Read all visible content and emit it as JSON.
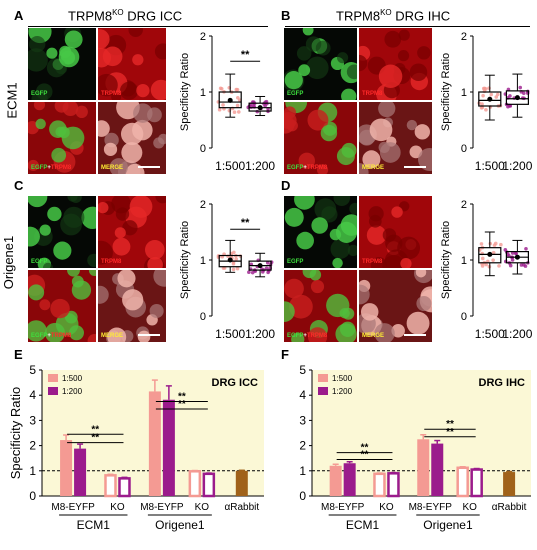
{
  "panels": {
    "A": {
      "letter": "A",
      "title_pre": "TRPM8",
      "title_sup": "KO",
      "title_post": " DRG ICC"
    },
    "B": {
      "letter": "B",
      "title_pre": "TRPM8",
      "title_sup": "KO",
      "title_post": " DRG IHC"
    },
    "C": {
      "letter": "C"
    },
    "D": {
      "letter": "D"
    },
    "E": {
      "letter": "E"
    },
    "F": {
      "letter": "F"
    }
  },
  "row_labels": {
    "ecm1": "ECM1",
    "origene1": "Origene1"
  },
  "micro_labels": {
    "egfp": "EGFP",
    "trpm8": "TRPM8",
    "merge": "MERGE",
    "plus": "+"
  },
  "colors": {
    "dil500": "#f49a93",
    "dil200": "#9b1b8c",
    "rabbit": "#a0621a",
    "bg": "#fbf8d6",
    "bgE": "#fbf8d6"
  },
  "chart_data": [
    {
      "panel": "A",
      "type": "box",
      "ylabel": "Specificity Ratio",
      "ylim": [
        0,
        2
      ],
      "yticks": [
        "0",
        "1",
        "2"
      ],
      "categories": [
        "1:500",
        "1:200"
      ],
      "boxes": [
        {
          "min": 0.55,
          "q1": 0.72,
          "median": 0.82,
          "q3": 1.0,
          "max": 1.32,
          "mean": 0.85
        },
        {
          "min": 0.58,
          "q1": 0.66,
          "median": 0.72,
          "q3": 0.8,
          "max": 0.92,
          "mean": 0.72
        }
      ],
      "significance": "**"
    },
    {
      "panel": "B",
      "type": "box",
      "ylabel": "Specificity Ratio",
      "ylim": [
        0,
        2
      ],
      "yticks": [
        "0",
        "1",
        "2"
      ],
      "categories": [
        "1:500",
        "1:200"
      ],
      "boxes": [
        {
          "min": 0.5,
          "q1": 0.75,
          "median": 0.85,
          "q3": 1.0,
          "max": 1.3,
          "mean": 0.87
        },
        {
          "min": 0.55,
          "q1": 0.78,
          "median": 0.88,
          "q3": 1.02,
          "max": 1.32,
          "mean": 0.9
        }
      ],
      "significance": ""
    },
    {
      "panel": "C",
      "type": "box",
      "ylabel": "Specificity Ratio",
      "ylim": [
        0,
        2
      ],
      "yticks": [
        "0",
        "1",
        "2"
      ],
      "categories": [
        "1:500",
        "1:200"
      ],
      "boxes": [
        {
          "min": 0.78,
          "q1": 0.88,
          "median": 0.98,
          "q3": 1.08,
          "max": 1.35,
          "mean": 1.0
        },
        {
          "min": 0.7,
          "q1": 0.82,
          "median": 0.9,
          "q3": 0.98,
          "max": 1.12,
          "mean": 0.9
        }
      ],
      "significance": "**"
    },
    {
      "panel": "D",
      "type": "box",
      "ylabel": "Specificity Ratio",
      "ylim": [
        0,
        2
      ],
      "yticks": [
        "0",
        "1",
        "2"
      ],
      "categories": [
        "1:500",
        "1:200"
      ],
      "boxes": [
        {
          "min": 0.72,
          "q1": 0.95,
          "median": 1.1,
          "q3": 1.22,
          "max": 1.5,
          "mean": 1.1
        },
        {
          "min": 0.75,
          "q1": 0.95,
          "median": 1.05,
          "q3": 1.15,
          "max": 1.35,
          "mean": 1.05
        }
      ],
      "significance": ""
    },
    {
      "panel": "E",
      "type": "bar",
      "title": "DRG ICC",
      "ylabel": "Specificity Ratio",
      "ylim": [
        0,
        5
      ],
      "yticks": [
        "0",
        "1",
        "2",
        "3",
        "4",
        "5"
      ],
      "legend": [
        "1:500",
        "1:200"
      ],
      "group_labels": [
        {
          "text": "M8-EYFP"
        },
        {
          "text": "KO"
        },
        {
          "text": "M8-EYFP"
        },
        {
          "text": "KO"
        },
        {
          "text": "αRabbit"
        }
      ],
      "antibody_labels": [
        "ECM1",
        "Origene1"
      ],
      "bars": [
        {
          "group": 0,
          "series": 0,
          "value": 2.22,
          "err": 0.2,
          "hollow": false
        },
        {
          "group": 0,
          "series": 1,
          "value": 1.88,
          "err": 0.18,
          "hollow": false
        },
        {
          "group": 1,
          "series": 0,
          "value": 0.82,
          "err": 0.04,
          "hollow": true
        },
        {
          "group": 1,
          "series": 1,
          "value": 0.7,
          "err": 0.04,
          "hollow": true
        },
        {
          "group": 2,
          "series": 0,
          "value": 4.15,
          "err": 0.45,
          "hollow": false
        },
        {
          "group": 2,
          "series": 1,
          "value": 3.82,
          "err": 0.55,
          "hollow": false
        },
        {
          "group": 3,
          "series": 0,
          "value": 0.98,
          "err": 0.03,
          "hollow": true
        },
        {
          "group": 3,
          "series": 1,
          "value": 0.88,
          "err": 0.03,
          "hollow": true
        },
        {
          "group": 4,
          "series": 2,
          "value": 1.0,
          "err": 0.02,
          "hollow": false
        }
      ],
      "sig": [
        {
          "from": 0,
          "to": 1,
          "y": 2.45,
          "label": "**"
        },
        {
          "from": 0,
          "to": 1,
          "y": 2.12,
          "label": "**"
        },
        {
          "from": 2,
          "to": 3,
          "y": 3.75,
          "label": "**"
        },
        {
          "from": 2,
          "to": 3,
          "y": 3.45,
          "label": "**"
        }
      ],
      "dashed_y": 1.0
    },
    {
      "panel": "F",
      "type": "bar",
      "title": "DRG IHC",
      "ylabel": "",
      "ylim": [
        0,
        5
      ],
      "yticks": [
        "0",
        "1",
        "2",
        "3",
        "4",
        "5"
      ],
      "legend": [
        "1:500",
        "1:200"
      ],
      "group_labels": [
        {
          "text": "M8-EYFP"
        },
        {
          "text": "KO"
        },
        {
          "text": "M8-EYFP"
        },
        {
          "text": "KO"
        },
        {
          "text": "αRabbit"
        }
      ],
      "antibody_labels": [
        "ECM1",
        "Origene1"
      ],
      "bars": [
        {
          "group": 0,
          "series": 0,
          "value": 1.2,
          "err": 0.06,
          "hollow": false
        },
        {
          "group": 0,
          "series": 1,
          "value": 1.3,
          "err": 0.06,
          "hollow": false
        },
        {
          "group": 1,
          "series": 0,
          "value": 0.88,
          "err": 0.03,
          "hollow": true
        },
        {
          "group": 1,
          "series": 1,
          "value": 0.9,
          "err": 0.03,
          "hollow": true
        },
        {
          "group": 2,
          "series": 0,
          "value": 2.25,
          "err": 0.18,
          "hollow": false
        },
        {
          "group": 2,
          "series": 1,
          "value": 2.08,
          "err": 0.12,
          "hollow": false
        },
        {
          "group": 3,
          "series": 0,
          "value": 1.12,
          "err": 0.04,
          "hollow": true
        },
        {
          "group": 3,
          "series": 1,
          "value": 1.05,
          "err": 0.04,
          "hollow": true
        },
        {
          "group": 4,
          "series": 2,
          "value": 0.95,
          "err": 0.02,
          "hollow": false
        }
      ],
      "sig": [
        {
          "from": 0,
          "to": 1,
          "y": 1.72,
          "label": "**"
        },
        {
          "from": 0,
          "to": 1,
          "y": 1.45,
          "label": "**"
        },
        {
          "from": 2,
          "to": 3,
          "y": 2.65,
          "label": "**"
        },
        {
          "from": 2,
          "to": 3,
          "y": 2.35,
          "label": "**"
        }
      ],
      "dashed_y": 1.0
    }
  ]
}
